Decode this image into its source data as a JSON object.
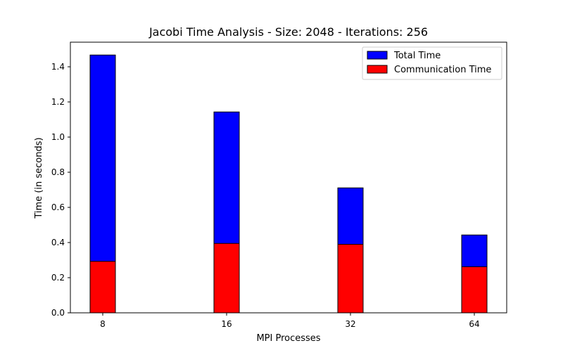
{
  "chart_data": {
    "type": "bar",
    "title": "Jacobi Time Analysis - Size: 2048 - Iterations: 256",
    "xlabel": "MPI Processes",
    "ylabel": "Time (in seconds)",
    "categories": [
      "8",
      "16",
      "32",
      "64"
    ],
    "ylim": [
      0,
      1.54
    ],
    "yticks": [
      "0.0",
      "0.2",
      "0.4",
      "0.6",
      "0.8",
      "1.0",
      "1.2",
      "1.4"
    ],
    "grid": false,
    "legend_position": "top-right",
    "series": [
      {
        "name": "Total Time",
        "color": "#0000ff",
        "values": [
          1.467,
          1.143,
          0.711,
          0.443
        ]
      },
      {
        "name": "Communication Time",
        "color": "#ff0000",
        "values": [
          0.293,
          0.395,
          0.39,
          0.262
        ]
      }
    ]
  }
}
